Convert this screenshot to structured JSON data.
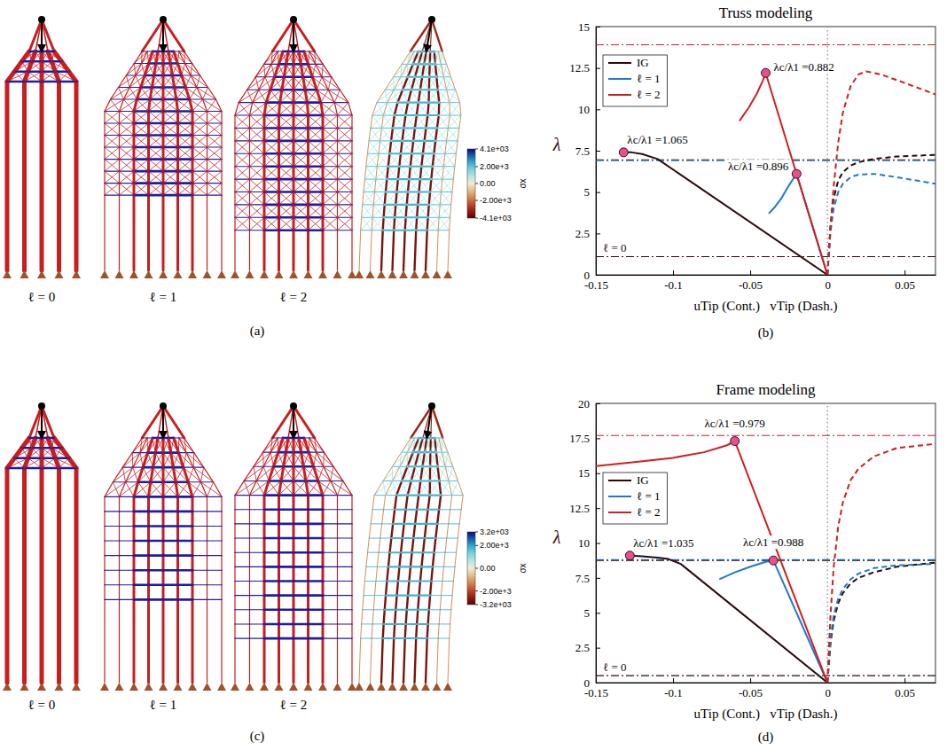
{
  "chart_data": [
    {
      "type": "structure",
      "panel_label": "(a)",
      "sublabels": [
        "ℓ = 0",
        "ℓ = 1",
        "ℓ = 2"
      ],
      "colorbar": {
        "label": "σx",
        "lim": [
          -4100,
          4100
        ],
        "ticks": [
          {
            "value": 4100,
            "label": "4.1e+03"
          },
          {
            "value": 2000,
            "label": "2.00e+3"
          },
          {
            "value": 0,
            "label": "0.00"
          },
          {
            "value": -2000,
            "label": "-2.00e+3"
          },
          {
            "value": -4100,
            "label": "-4.1e+03"
          }
        ]
      }
    },
    {
      "type": "line",
      "title": "Truss modeling",
      "panel_label": "(b)",
      "x_label": "uTip (Cont.)   vTip (Dash.)",
      "y_label": "λ",
      "xlim": [
        -0.15,
        0.07
      ],
      "xticks": [
        -0.15,
        -0.1,
        -0.05,
        0,
        0.05
      ],
      "ylim": [
        0,
        15
      ],
      "yticks": [
        0,
        2.5,
        5,
        7.5,
        10,
        12.5,
        15
      ],
      "legend": "left",
      "series": [
        {
          "name": "IG",
          "color": "#2b0b0b",
          "line_style": "solid",
          "x": [
            0,
            -0.11,
            -0.12,
            -0.127,
            -0.132
          ],
          "values": [
            0,
            7.0,
            7.3,
            7.4,
            7.4
          ]
        },
        {
          "name": "IG",
          "color": "#2b0b0b",
          "line_style": "dashed",
          "x": [
            0,
            0.001,
            0.002,
            0.004,
            0.007,
            0.01,
            0.015,
            0.02,
            0.03,
            0.045,
            0.07
          ],
          "values": [
            0,
            1.5,
            3.0,
            4.6,
            5.7,
            6.2,
            6.6,
            6.8,
            7.0,
            7.15,
            7.25
          ]
        },
        {
          "name": "ℓ = 1",
          "color": "#1e78d2",
          "line_style": "solid",
          "x": [
            0,
            -0.02,
            -0.025,
            -0.03,
            -0.034,
            -0.038
          ],
          "values": [
            0,
            6.1,
            5.4,
            4.6,
            4.1,
            3.7
          ]
        },
        {
          "name": "ℓ = 1",
          "color": "#1e78d2",
          "line_style": "dashed",
          "x": [
            0,
            0.001,
            0.002,
            0.004,
            0.007,
            0.01,
            0.015,
            0.02,
            0.03,
            0.045,
            0.07
          ],
          "values": [
            0,
            1.3,
            2.6,
            4.0,
            5.0,
            5.5,
            5.9,
            6.05,
            6.1,
            5.9,
            5.5
          ]
        },
        {
          "name": "ℓ = 2",
          "color": "#d01f1f",
          "line_style": "solid",
          "x": [
            0,
            -0.04,
            -0.042,
            -0.046,
            -0.051,
            -0.057
          ],
          "values": [
            0,
            12.2,
            11.7,
            10.9,
            10.1,
            9.3
          ]
        },
        {
          "name": "ℓ = 2",
          "color": "#d01f1f",
          "line_style": "dashed",
          "x": [
            0,
            0.002,
            0.004,
            0.007,
            0.01,
            0.015,
            0.02,
            0.025,
            0.035,
            0.05,
            0.07
          ],
          "values": [
            0,
            2.8,
            5.3,
            8.0,
            9.8,
            11.4,
            12.1,
            12.3,
            12.1,
            11.6,
            10.9
          ]
        }
      ],
      "reference_lines": [
        {
          "value": 13.9,
          "color": "#d01f1f",
          "line_style": "dashdot"
        },
        {
          "value": 6.95,
          "color": "#2b0b0b",
          "line_style": "dashdot"
        },
        {
          "value": 6.9,
          "color": "#1e78d2",
          "line_style": "dashdot"
        },
        {
          "value": 1.1,
          "color": "#2b0b0b",
          "line_style": "dashdot",
          "label": "ℓ = 0"
        }
      ],
      "vertical_reference_lines": [
        {
          "value": 0,
          "color": "#666666",
          "line_style": "dotted"
        }
      ],
      "points": [
        {
          "x": -0.132,
          "y": 7.4,
          "label": "λc/λ1 =1.065",
          "color": "#e8508c"
        },
        {
          "x": -0.04,
          "y": 12.2,
          "label": "λc/λ1 =0.882",
          "color": "#e8508c"
        },
        {
          "x": -0.02,
          "y": 6.1,
          "label": "λc/λ1 =0.896",
          "color": "#e8508c"
        }
      ]
    },
    {
      "type": "structure",
      "panel_label": "(c)",
      "sublabels": [
        "ℓ = 0",
        "ℓ = 1",
        "ℓ = 2"
      ],
      "colorbar": {
        "label": "σx",
        "lim": [
          -3200,
          3200
        ],
        "ticks": [
          {
            "value": 3200,
            "label": "3.2e+03"
          },
          {
            "value": 2000,
            "label": "2.00e+3"
          },
          {
            "value": 0,
            "label": "0.00"
          },
          {
            "value": -2000,
            "label": "-2.00e+3"
          },
          {
            "value": -3200,
            "label": "-3.2e+03"
          }
        ]
      }
    },
    {
      "type": "line",
      "title": "Frame modeling",
      "panel_label": "(d)",
      "x_label": "uTip (Cont.)   vTip (Dash.)",
      "y_label": "λ",
      "xlim": [
        -0.15,
        0.07
      ],
      "xticks": [
        -0.15,
        -0.1,
        -0.05,
        0,
        0.05
      ],
      "ylim": [
        0,
        20
      ],
      "yticks": [
        0,
        2.5,
        5,
        7.5,
        10,
        12.5,
        15,
        17.5,
        20
      ],
      "legend": "left",
      "series": [
        {
          "name": "IG",
          "color": "#2b0b0b",
          "line_style": "solid",
          "x": [
            0,
            -0.095,
            -0.103,
            -0.11,
            -0.12,
            -0.128
          ],
          "values": [
            0,
            8.5,
            8.85,
            8.95,
            9.05,
            9.1
          ]
        },
        {
          "name": "IG",
          "color": "#2b0b0b",
          "line_style": "dashed",
          "x": [
            0,
            0.001,
            0.002,
            0.004,
            0.007,
            0.01,
            0.015,
            0.02,
            0.03,
            0.045,
            0.07
          ],
          "values": [
            0,
            1.4,
            2.8,
            4.4,
            5.7,
            6.4,
            7.1,
            7.5,
            7.9,
            8.3,
            8.6
          ]
        },
        {
          "name": "ℓ = 1",
          "color": "#1e78d2",
          "line_style": "solid",
          "x": [
            0,
            -0.035,
            -0.04,
            -0.05,
            -0.06,
            -0.07
          ],
          "values": [
            0,
            8.75,
            8.65,
            8.3,
            7.9,
            7.4
          ]
        },
        {
          "name": "ℓ = 1",
          "color": "#1e78d2",
          "line_style": "dashed",
          "x": [
            0,
            0.001,
            0.002,
            0.004,
            0.007,
            0.01,
            0.015,
            0.02,
            0.03,
            0.045,
            0.07
          ],
          "values": [
            0,
            1.6,
            3.1,
            4.8,
            6.0,
            6.7,
            7.4,
            7.8,
            8.2,
            8.4,
            8.5
          ]
        },
        {
          "name": "ℓ = 2",
          "color": "#d01f1f",
          "line_style": "solid",
          "x": [
            0,
            -0.06,
            -0.065,
            -0.08,
            -0.1,
            -0.125,
            -0.15
          ],
          "values": [
            0,
            17.3,
            17.0,
            16.5,
            16.1,
            15.8,
            15.5
          ]
        },
        {
          "name": "ℓ = 2",
          "color": "#d01f1f",
          "line_style": "dashed",
          "x": [
            0,
            0.001,
            0.002,
            0.004,
            0.007,
            0.01,
            0.015,
            0.02,
            0.03,
            0.045,
            0.07
          ],
          "values": [
            0,
            2.5,
            4.8,
            8.2,
            11.2,
            12.9,
            14.5,
            15.3,
            16.2,
            16.8,
            17.1
          ]
        }
      ],
      "reference_lines": [
        {
          "value": 17.7,
          "color": "#d01f1f",
          "line_style": "dashdot"
        },
        {
          "value": 8.8,
          "color": "#1e78d2",
          "line_style": "dashdot"
        },
        {
          "value": 8.75,
          "color": "#2b0b0b",
          "line_style": "dashdot"
        },
        {
          "value": 0.5,
          "color": "#2b0b0b",
          "line_style": "dashdot",
          "label": "ℓ = 0"
        }
      ],
      "vertical_reference_lines": [
        {
          "value": 0,
          "color": "#666666",
          "line_style": "dotted"
        }
      ],
      "points": [
        {
          "x": -0.128,
          "y": 9.1,
          "label": "λc/λ1 =1.035",
          "color": "#e8508c"
        },
        {
          "x": -0.06,
          "y": 17.3,
          "label": "λc/λ1 =0.979",
          "color": "#e8508c"
        },
        {
          "x": -0.035,
          "y": 8.75,
          "label": "λc/λ1 =0.988",
          "color": "#e8508c"
        }
      ]
    }
  ]
}
